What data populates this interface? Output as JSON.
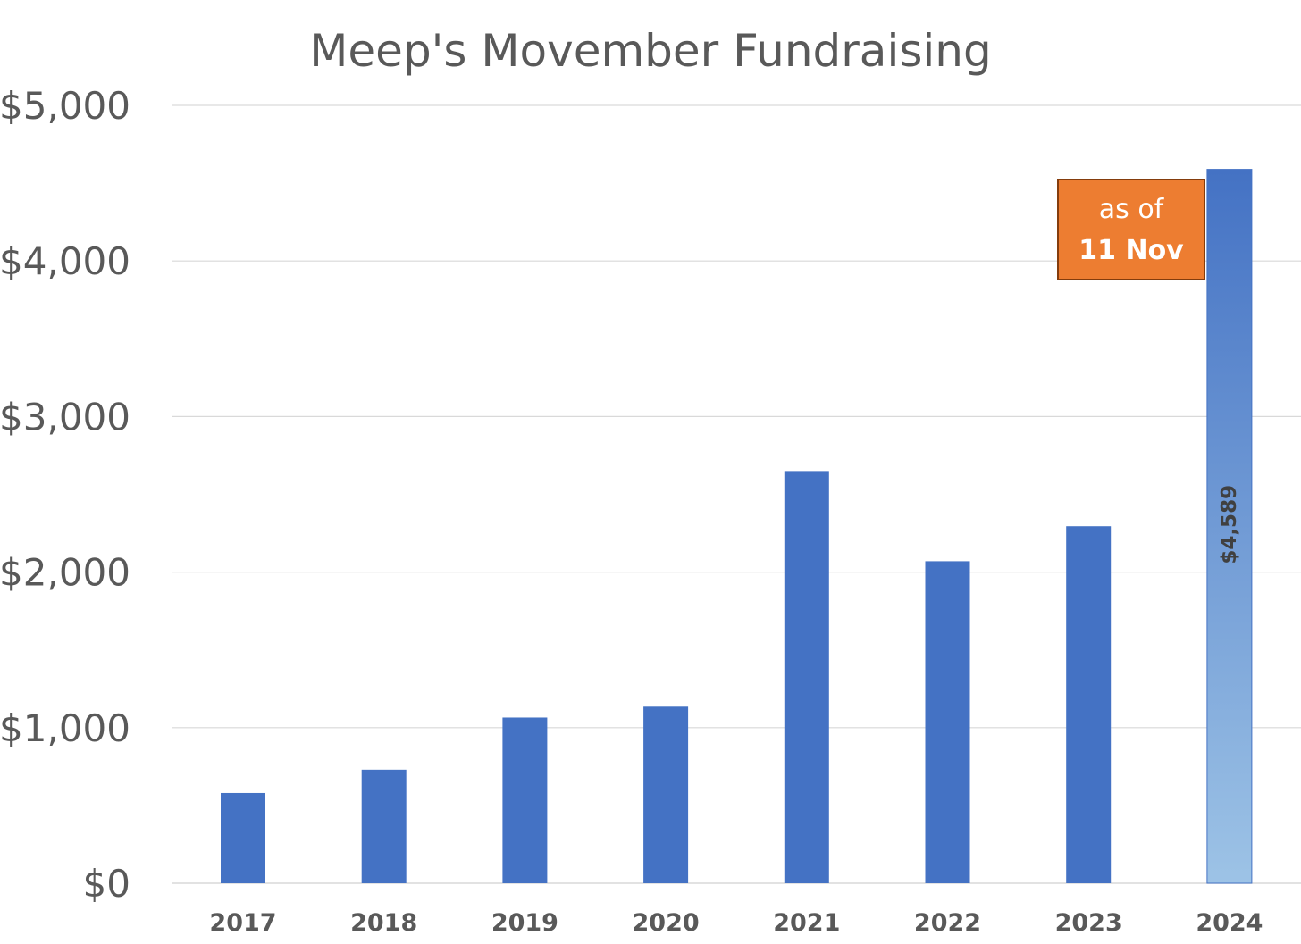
{
  "chart_data": {
    "type": "bar",
    "title": "Meep's Movember Fundraising",
    "xlabel": "",
    "ylabel": "",
    "categories": [
      "2017",
      "2018",
      "2019",
      "2020",
      "2021",
      "2022",
      "2023",
      "2024"
    ],
    "values": [
      580,
      730,
      1065,
      1135,
      2650,
      2070,
      2295,
      4589
    ],
    "ylim": [
      0,
      5000
    ],
    "yticks": [
      {
        "value": 0,
        "label": "$0"
      },
      {
        "value": 1000,
        "label": "$1,000"
      },
      {
        "value": 2000,
        "label": "$2,000"
      },
      {
        "value": 3000,
        "label": "$3,000"
      },
      {
        "value": 4000,
        "label": "$4,000"
      },
      {
        "value": 5000,
        "label": "$5,000"
      }
    ],
    "grid": true,
    "legend": "none",
    "bar_color": "#4472C4",
    "highlight": {
      "category": "2024",
      "data_label": "$4,589",
      "gradient_top": "#4472C4",
      "gradient_bottom": "#9DC3E6"
    },
    "annotation": {
      "line1": "as of",
      "line2": "11 Nov",
      "fill": "#ED7D31",
      "border": "#843C0C"
    }
  }
}
